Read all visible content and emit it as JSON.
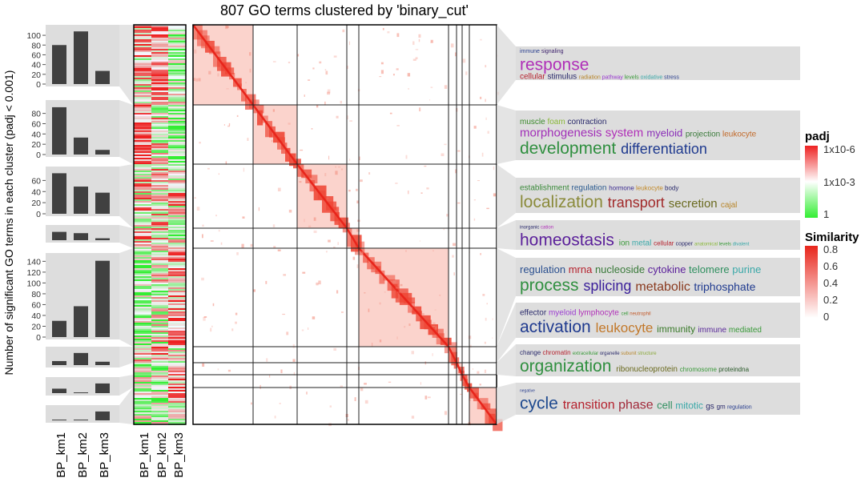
{
  "title": "807 GO terms clustered by 'binary_cut'",
  "ylabel": "Number of significant GO terms in each cluster (padj < 0.001)",
  "columns": [
    "BP_km1",
    "BP_km2",
    "BP_km3"
  ],
  "colors": {
    "bar": "#404040",
    "panel": "#dddddd",
    "heat_low": "#33ee33",
    "heat_mid": "#ffffff",
    "heat_high": "#ee2222",
    "sim_high": "#e8251b"
  },
  "chart_data": {
    "type": "bar",
    "title": "807 GO terms clustered by 'binary_cut'",
    "ylabel": "Number of significant GO terms in each cluster (padj < 0.001)",
    "categories": [
      "BP_km1",
      "BP_km2",
      "BP_km3"
    ],
    "clusters": [
      {
        "values": [
          80,
          108,
          27
        ],
        "ylim": [
          0,
          110
        ],
        "ticks": [
          "100",
          "80",
          "60",
          "40",
          "20",
          "0"
        ]
      },
      {
        "values": [
          92,
          33,
          9
        ],
        "ylim": [
          0,
          95
        ],
        "ticks": [
          "80",
          "60",
          "40",
          "20",
          "0"
        ]
      },
      {
        "values": [
          73,
          49,
          38
        ],
        "ylim": [
          0,
          75
        ],
        "ticks": [
          "60",
          "40",
          "20",
          "0"
        ]
      },
      {
        "values": [
          13,
          11,
          3
        ],
        "ylim": [
          0,
          15
        ],
        "ticks": []
      },
      {
        "values": [
          30,
          57,
          141
        ],
        "ylim": [
          0,
          145
        ],
        "ticks": [
          "140",
          "120",
          "100",
          "80",
          "60",
          "40",
          "20",
          "0"
        ]
      },
      {
        "values": [
          6,
          18,
          5
        ],
        "ylim": [
          0,
          19
        ],
        "ticks": []
      },
      {
        "values": [
          6,
          1,
          13
        ],
        "ylim": [
          0,
          14
        ],
        "ticks": []
      },
      {
        "values": [
          1,
          1,
          12
        ],
        "ylim": [
          0,
          13
        ],
        "ticks": []
      }
    ]
  },
  "legend": {
    "padj": {
      "title": "padj",
      "labels": [
        "1x10-6",
        "1x10-3",
        "1"
      ]
    },
    "similarity": {
      "title": "Similarity",
      "labels": [
        "0.8",
        "0.6",
        "0.4",
        "0.2",
        "0"
      ]
    }
  },
  "wordclouds": [
    [
      [
        [
          "immune",
          "#2a3f8f",
          7
        ],
        [
          "signaling",
          "#3b1f6b",
          7
        ]
      ],
      [
        [
          "response",
          "#b02fb8",
          21
        ]
      ],
      [
        [
          "cellular",
          "#b5222e",
          10
        ],
        [
          "stimulus",
          "#2a2a6b",
          10
        ],
        [
          "radiation",
          "#b8862b",
          7
        ],
        [
          "pathway",
          "#9a3bd0",
          7
        ],
        [
          "levels",
          "#3a9a3a",
          7
        ],
        [
          "oxidative",
          "#3aa8a8",
          7
        ],
        [
          "stress",
          "#2a3f8f",
          7
        ]
      ]
    ],
    [
      [
        [
          "muscle",
          "#3a8a2a",
          10
        ],
        [
          "foam",
          "#8ab83a",
          10
        ],
        [
          "contraction",
          "#2a2a6b",
          10
        ]
      ],
      [
        [
          "morphogenesis",
          "#a12fb8",
          15
        ],
        [
          "system",
          "#b02fb8",
          15
        ],
        [
          "myeloid",
          "#8a2fb8",
          13
        ],
        [
          "projection",
          "#3a7a3a",
          10
        ],
        [
          "leukocyte",
          "#c26a2a",
          10
        ]
      ],
      [
        [
          "development",
          "#2f8f3f",
          21
        ],
        [
          "differentiation",
          "#1f3a8f",
          18
        ]
      ]
    ],
    [
      [
        [
          "establishment",
          "#3a8a3a",
          10
        ],
        [
          "regulation",
          "#2a5a8f",
          10
        ],
        [
          "hormone",
          "#3a2a8f",
          8
        ],
        [
          "leukocyte",
          "#c28a2a",
          8
        ],
        [
          "body",
          "#2a2a6b",
          8
        ]
      ],
      [
        [
          "localization",
          "#8a8a3a",
          21
        ],
        [
          "transport",
          "#a12a2a",
          18
        ],
        [
          "secretion",
          "#6a6a1f",
          15
        ],
        [
          "cajal",
          "#b8862b",
          10
        ]
      ]
    ],
    [
      [
        [
          "inorganic",
          "#2a2a6b",
          6
        ],
        [
          "cation",
          "#b02fb8",
          6
        ]
      ],
      [
        [
          "homeostasis",
          "#5a1f9a",
          21
        ],
        [
          "ion",
          "#3a9a3a",
          10
        ],
        [
          "metal",
          "#3aa8a8",
          10
        ],
        [
          "cellular",
          "#b5222e",
          8
        ],
        [
          "copper",
          "#2a2a6b",
          7
        ],
        [
          "anatomical",
          "#8ab83a",
          6
        ],
        [
          "levels",
          "#3a9a3a",
          6
        ],
        [
          "divalent",
          "#3aa8a8",
          6
        ]
      ]
    ],
    [
      [
        [
          "regulation",
          "#2a4f8f",
          13
        ],
        [
          "mrna",
          "#b5222e",
          13
        ],
        [
          "nucleoside",
          "#3a7a3a",
          13
        ],
        [
          "cytokine",
          "#5a1f9a",
          13
        ],
        [
          "telomere",
          "#2f8f5f",
          13
        ],
        [
          "purine",
          "#3aa8a8",
          13
        ]
      ],
      [
        [
          "process",
          "#2f8f3f",
          21
        ],
        [
          "splicing",
          "#3a1f9a",
          18
        ],
        [
          "metabolic",
          "#8a3a1f",
          16
        ],
        [
          "triphosphate",
          "#1f3a8f",
          14
        ]
      ]
    ],
    [
      [
        [
          "effector",
          "#2a2a6b",
          10
        ],
        [
          "myeloid",
          "#9a3bd0",
          10
        ],
        [
          "lymphocyte",
          "#b02fb8",
          10
        ],
        [
          "cell",
          "#3a9a3a",
          6
        ],
        [
          "neutrophil",
          "#c25a2a",
          6
        ]
      ],
      [
        [
          "activation",
          "#1f3a8f",
          21
        ],
        [
          "leukocyte",
          "#c2782a",
          17
        ],
        [
          "immunity",
          "#3a7a2a",
          12
        ],
        [
          "immune",
          "#5a2a9a",
          10
        ],
        [
          "mediated",
          "#3a9a3a",
          10
        ]
      ]
    ],
    [
      [
        [
          "change",
          "#2a2a6b",
          8
        ],
        [
          "chromatin",
          "#b5222e",
          8
        ],
        [
          "extracellular",
          "#3a9a3a",
          6
        ],
        [
          "organelle",
          "#2a2a6b",
          6
        ],
        [
          "subunit",
          "#b8862b",
          6
        ],
        [
          "structure",
          "#8aa83a",
          6
        ]
      ],
      [
        [
          "organization",
          "#2f8f3f",
          21
        ],
        [
          "ribonucleoprotein",
          "#6a6a1f",
          10
        ],
        [
          "chromosome",
          "#3a9a3a",
          8
        ],
        [
          "proteindna",
          "#2a5a2a",
          8
        ]
      ]
    ],
    [
      [
        [
          "negative",
          "#2a3f8f",
          5
        ]
      ],
      [
        [
          "cycle",
          "#1f4a8f",
          21
        ],
        [
          "transition",
          "#b5222e",
          16
        ],
        [
          "phase",
          "#a12a3a",
          16
        ],
        [
          "cell",
          "#2f8f5f",
          13
        ],
        [
          "mitotic",
          "#3aa8a8",
          12
        ],
        [
          "gs",
          "#2a2a6b",
          10
        ],
        [
          "gm",
          "#2a2a6b",
          8
        ],
        [
          "regulation",
          "#2a3f8f",
          7
        ]
      ]
    ]
  ]
}
